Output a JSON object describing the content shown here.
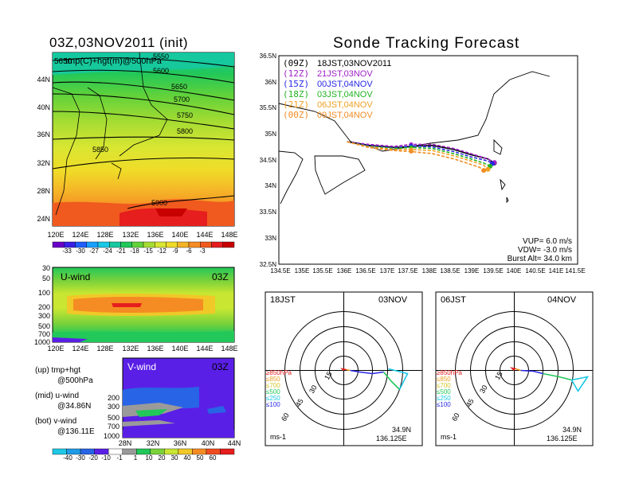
{
  "colors": {
    "palette_tmp": [
      "#6a00c8",
      "#3a1fe6",
      "#1f5fff",
      "#1aa0ff",
      "#19c8e6",
      "#16c8a0",
      "#22c85a",
      "#62d23a",
      "#a6dc32",
      "#d9e632",
      "#f0dc28",
      "#f5b428",
      "#f58c23",
      "#f05a1e",
      "#e61e1e",
      "#c80000"
    ],
    "palette_wind": [
      "#1fc8e6",
      "#1e9be6",
      "#2864e6",
      "#5a1fe6",
      "#ffffff",
      "#9a9a9a",
      "#22c85a",
      "#7ad23a",
      "#c8e632",
      "#f0c828",
      "#f58c23",
      "#f04b1e",
      "#e61e1e"
    ]
  },
  "charts": {
    "map500": {
      "title": "03Z,03NOV2011 (init)",
      "label": "tmp(C)+hgt(m)@500hPa",
      "label_prefix": "5650",
      "x_ticks": [
        "120E",
        "124E",
        "128E",
        "132E",
        "136E",
        "140E",
        "144E",
        "148E"
      ],
      "y_ticks": [
        "44N",
        "40N",
        "36N",
        "32N",
        "28N",
        "24N"
      ],
      "contours": [
        "5550",
        "5600",
        "5650",
        "5700",
        "5750",
        "5800",
        "5850",
        "5900"
      ],
      "colorbar": [
        "-33",
        "-30",
        "-27",
        "-24",
        "-21",
        "-18",
        "-15",
        "-12",
        "-9",
        "-6",
        "-3"
      ]
    },
    "uwind": {
      "title": "U-wind",
      "time": "03Z",
      "x_ticks": [
        "120E",
        "124E",
        "128E",
        "132E",
        "136E",
        "140E",
        "144E",
        "148E"
      ],
      "y_ticks": [
        "30",
        "50",
        "100",
        "200",
        "300",
        "500",
        "700",
        "1000"
      ]
    },
    "vwind": {
      "title": "V-wind",
      "time": "03Z",
      "x_ticks": [
        "28N",
        "32N",
        "36N",
        "40N",
        "44N"
      ],
      "y_ticks": [
        "200",
        "300",
        "500",
        "700",
        "1000"
      ],
      "colorbar": [
        "-40",
        "-30",
        "-20",
        "-10",
        "-1",
        "1",
        "10",
        "20",
        "30",
        "40",
        "50",
        "60"
      ]
    },
    "legend_notes": [
      {
        "a": "(up) tmp+hgt",
        "b": "@500hPa"
      },
      {
        "a": "(mid) u-wind",
        "b": "@34.86N"
      },
      {
        "a": "(bot) v-wind",
        "b": "@136.11E"
      }
    ],
    "tracking": {
      "title": "Sonde Tracking Forecast",
      "x_ticks": [
        "134.5E",
        "135E",
        "135.5E",
        "136E",
        "136.5E",
        "137E",
        "137.5E",
        "138E",
        "138.5E",
        "139E",
        "139.5E",
        "140E",
        "140.5E",
        "141E",
        "141.5E"
      ],
      "y_ticks": [
        "36.5N",
        "36N",
        "35.5N",
        "35N",
        "34.5N",
        "34N",
        "33.5N",
        "33N",
        "32.5N"
      ],
      "legend": [
        {
          "code": "(09Z)",
          "when": "18JST,03NOV2011",
          "color": "#000000"
        },
        {
          "code": "(12Z)",
          "when": "21JST,03NOV",
          "color": "#a020c8"
        },
        {
          "code": "(15Z)",
          "when": "00JST,04NOV",
          "color": "#2828e6"
        },
        {
          "code": "(18Z)",
          "when": "03JST,04NOV",
          "color": "#22b422"
        },
        {
          "code": "(21Z)",
          "when": "06JST,04NOV",
          "color": "#f0a023"
        },
        {
          "code": "(00Z)",
          "when": "09JST,04NOV",
          "color": "#f08c23"
        }
      ],
      "info": [
        "VUP= 6.0 m/s",
        "VDW= -3.0 m/s",
        "Burst Alt= 34.0 km"
      ]
    },
    "hodos": [
      {
        "left": "18JST",
        "right": "03NOV",
        "lat": "34.9N",
        "lon": "136.125E",
        "unit": "ms-1"
      },
      {
        "left": "06JST",
        "right": "04NOV",
        "lat": "34.9N",
        "lon": "136.125E",
        "unit": "ms-1"
      }
    ],
    "hodo_rings": [
      "15",
      "30",
      "45",
      "60"
    ],
    "hodo_levels": [
      {
        "label": "≥850hPa",
        "color": "#e61e1e"
      },
      {
        "label": "≤850",
        "color": "#f0a023"
      },
      {
        "label": "≤700",
        "color": "#d2c828"
      },
      {
        "label": "≤500",
        "color": "#22c85a"
      },
      {
        "label": "≤250",
        "color": "#19c8e6"
      },
      {
        "label": "≤100",
        "color": "#2828e6"
      }
    ]
  },
  "chart_data": [
    {
      "type": "heatmap",
      "title": "03Z,03NOV2011 (init)",
      "xlabel": "",
      "ylabel": "",
      "xlim": [
        120,
        149
      ],
      "ylim": [
        22,
        47
      ],
      "colorbar": [
        -33,
        -30,
        -27,
        -24,
        -21,
        -18,
        -15,
        -12,
        -9,
        -6,
        -3
      ],
      "contour_levels_m": [
        5550,
        5600,
        5650,
        5700,
        5750,
        5800,
        5850,
        5900
      ]
    },
    {
      "type": "heatmap",
      "title": "U-wind",
      "xlim": [
        120,
        149
      ],
      "y_levels_hPa": [
        30,
        50,
        100,
        200,
        300,
        500,
        700,
        1000
      ]
    },
    {
      "type": "heatmap",
      "title": "V-wind",
      "xlim": [
        28,
        44
      ],
      "y_levels_hPa": [
        200,
        300,
        500,
        700,
        1000
      ],
      "colorbar": [
        -40,
        -30,
        -20,
        -10,
        -1,
        1,
        10,
        20,
        30,
        40,
        50,
        60
      ]
    },
    {
      "type": "line",
      "title": "Sonde Tracking Forecast",
      "xlim": [
        134.5,
        141.5
      ],
      "ylim": [
        32.5,
        36.5
      ],
      "series": [
        {
          "name": "(09Z) 18JST,03NOV2011",
          "color": "#000000",
          "x": [
            136.1,
            136.6,
            137.2,
            137.6,
            138.1,
            138.6,
            139.0,
            139.4,
            139.55
          ],
          "y": [
            34.85,
            34.78,
            34.74,
            34.76,
            34.78,
            34.7,
            34.6,
            34.52,
            34.44
          ]
        },
        {
          "name": "(12Z) 21JST,03NOV",
          "color": "#a020c8",
          "x": [
            136.1,
            136.6,
            137.2,
            137.6,
            138.1,
            138.6,
            139.0,
            139.4,
            139.55
          ],
          "y": [
            34.85,
            34.8,
            34.76,
            34.8,
            34.8,
            34.72,
            34.62,
            34.52,
            34.45
          ]
        },
        {
          "name": "(15Z) 00JST,04NOV",
          "color": "#2828e6",
          "x": [
            136.1,
            136.6,
            137.2,
            137.6,
            138.1,
            138.6,
            139.0,
            139.4,
            139.5
          ],
          "y": [
            34.85,
            34.77,
            34.73,
            34.77,
            34.75,
            34.66,
            34.56,
            34.48,
            34.43
          ]
        },
        {
          "name": "(18Z) 03JST,04NOV",
          "color": "#22b422",
          "x": [
            136.1,
            136.6,
            137.2,
            137.6,
            138.1,
            138.6,
            139.0,
            139.3,
            139.45
          ],
          "y": [
            34.85,
            34.76,
            34.72,
            34.74,
            34.72,
            34.62,
            34.52,
            34.44,
            34.38
          ]
        },
        {
          "name": "(21Z) 06JST,04NOV",
          "color": "#f0a023",
          "x": [
            136.1,
            136.6,
            137.2,
            137.6,
            138.1,
            138.6,
            139.0,
            139.3,
            139.4
          ],
          "y": [
            34.85,
            34.75,
            34.7,
            34.7,
            34.68,
            34.58,
            34.48,
            34.4,
            34.32
          ]
        },
        {
          "name": "(00Z) 09JST,04NOV",
          "color": "#f08c23",
          "x": [
            136.1,
            136.6,
            137.2,
            137.6,
            138.1,
            138.6,
            138.9,
            139.2,
            139.3
          ],
          "y": [
            34.85,
            34.74,
            34.68,
            34.66,
            34.62,
            34.52,
            34.44,
            34.36,
            34.3
          ]
        }
      ]
    }
  ]
}
